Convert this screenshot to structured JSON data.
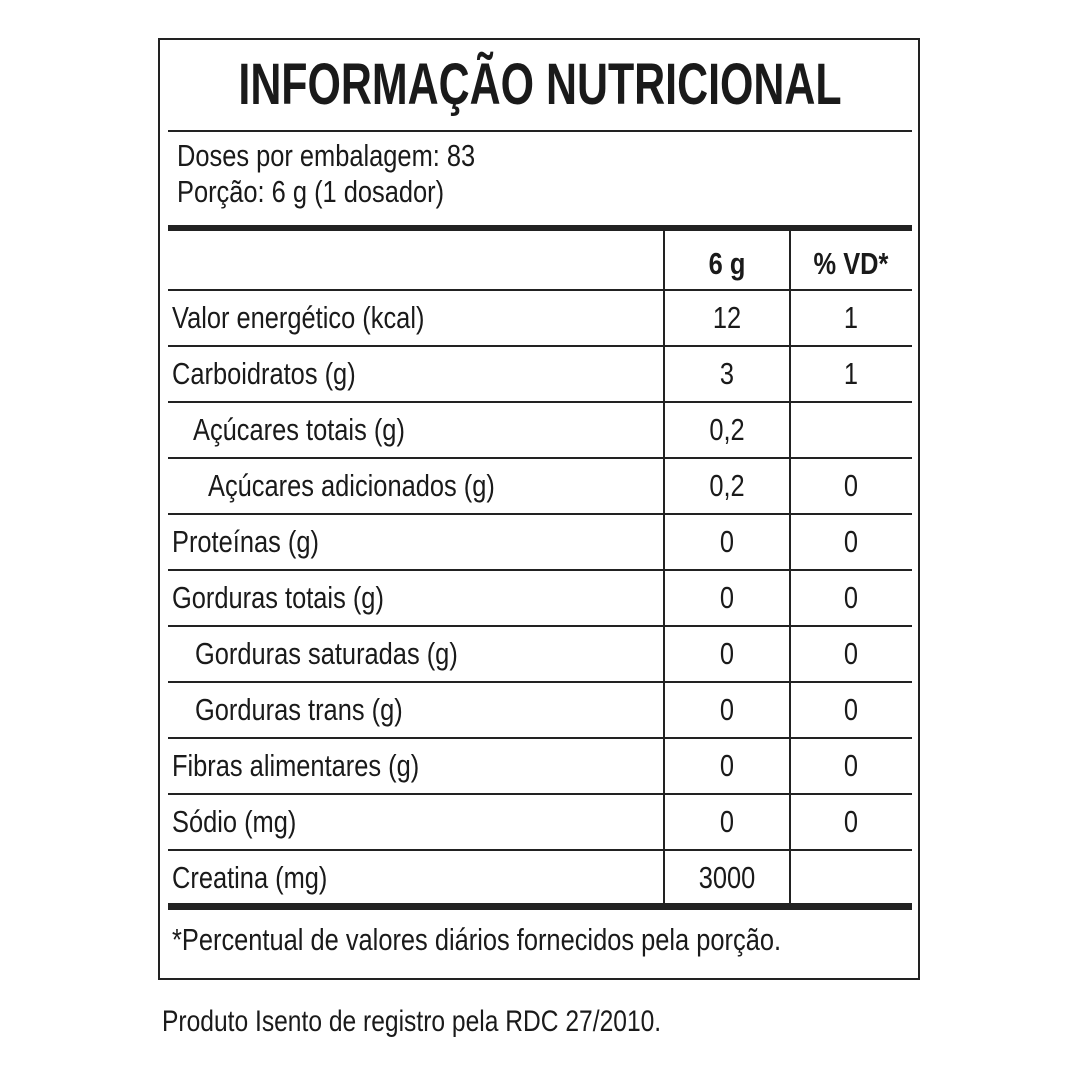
{
  "title": "INFORMAÇÃO NUTRICIONAL",
  "servings": "Doses por embalagem: 83",
  "portion": "Porção: 6 g (1 dosador)",
  "headers": {
    "amount": "6 g",
    "dv": "% VD*"
  },
  "rows": [
    {
      "label": "Valor energético (kcal)",
      "amount": "12",
      "dv": "1",
      "indent": 0
    },
    {
      "label": "Carboidratos (g)",
      "amount": "3",
      "dv": "1",
      "indent": 0
    },
    {
      "label": "Açúcares totais (g)",
      "amount": "0,2",
      "dv": "",
      "indent": 1
    },
    {
      "label": "Açúcares adicionados (g)",
      "amount": "0,2",
      "dv": "0",
      "indent": 2
    },
    {
      "label": "Proteínas (g)",
      "amount": "0",
      "dv": "0",
      "indent": 0
    },
    {
      "label": "Gorduras totais (g)",
      "amount": "0",
      "dv": "0",
      "indent": 0
    },
    {
      "label": "Gorduras saturadas (g)",
      "amount": "0",
      "dv": "0",
      "indent": 1
    },
    {
      "label": "Gorduras trans (g)",
      "amount": "0",
      "dv": "0",
      "indent": 1
    },
    {
      "label": "Fibras alimentares (g)",
      "amount": "0",
      "dv": "0",
      "indent": 0
    },
    {
      "label": "Sódio (mg)",
      "amount": "0",
      "dv": "0",
      "indent": 0
    },
    {
      "label": "Creatina (mg)",
      "amount": "3000",
      "dv": "",
      "indent": 0
    }
  ],
  "footnote": "*Percentual de valores diários fornecidos pela porção.",
  "registration": "Produto Isento de registro pela RDC 27/2010."
}
